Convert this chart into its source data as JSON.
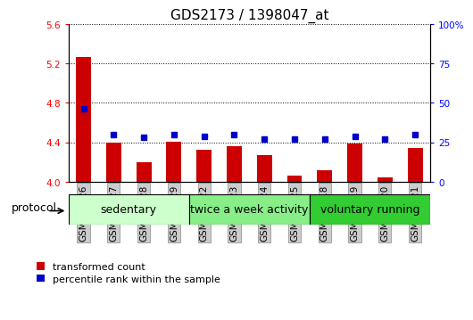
{
  "title": "GDS2173 / 1398047_at",
  "samples": [
    "GSM114626",
    "GSM114627",
    "GSM114628",
    "GSM114629",
    "GSM114622",
    "GSM114623",
    "GSM114624",
    "GSM114625",
    "GSM114618",
    "GSM114619",
    "GSM114620",
    "GSM114621"
  ],
  "transformed_count": [
    5.26,
    4.4,
    4.2,
    4.41,
    4.32,
    4.36,
    4.27,
    4.06,
    4.12,
    4.39,
    4.04,
    4.34
  ],
  "percentile_rank": [
    46,
    30,
    28,
    30,
    29,
    30,
    27,
    27,
    27,
    29,
    27,
    30
  ],
  "groups": [
    {
      "label": "sedentary",
      "start": 0,
      "end": 4,
      "color": "#ccffcc"
    },
    {
      "label": "twice a week activity",
      "start": 4,
      "end": 8,
      "color": "#88ee88"
    },
    {
      "label": "voluntary running",
      "start": 8,
      "end": 12,
      "color": "#33cc33"
    }
  ],
  "ylim_left": [
    4.0,
    5.6
  ],
  "ylim_right": [
    0,
    100
  ],
  "yticks_left": [
    4.0,
    4.4,
    4.8,
    5.2,
    5.6
  ],
  "yticks_right": [
    0,
    25,
    50,
    75,
    100
  ],
  "bar_color": "#cc0000",
  "dot_color": "#0000cc",
  "bar_width": 0.5,
  "title_fontsize": 11,
  "tick_fontsize": 7.5,
  "label_fontsize": 8,
  "group_label_fontsize": 9,
  "protocol_fontsize": 9,
  "xtick_bg_color": "#cccccc"
}
